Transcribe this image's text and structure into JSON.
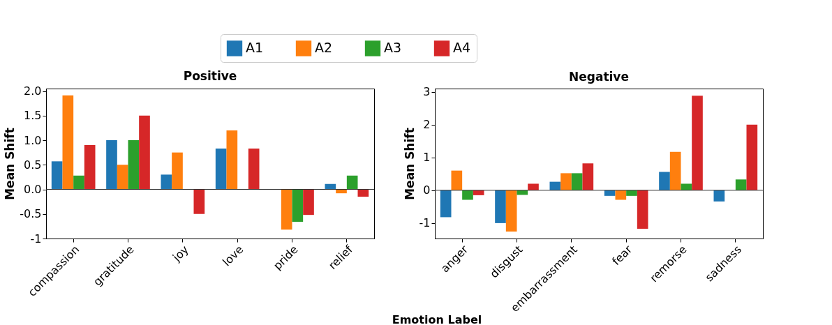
{
  "chart_data": [
    {
      "type": "bar",
      "title": "Positive",
      "xlabel": "Emotion Label",
      "ylabel": "Mean Shift",
      "legend": "top",
      "grid": false,
      "categories": [
        "compassion",
        "gratitude",
        "joy",
        "love",
        "pride",
        "relief"
      ],
      "series": [
        {
          "name": "A1",
          "color": "#1f77b4",
          "values": [
            0.57,
            1.0,
            0.3,
            0.83,
            0,
            0.11
          ]
        },
        {
          "name": "A2",
          "color": "#ff7f0e",
          "values": [
            1.91,
            0.5,
            0.75,
            1.2,
            -0.82,
            -0.08
          ]
        },
        {
          "name": "A3",
          "color": "#2ca02c",
          "values": [
            0.28,
            1.0,
            0,
            0,
            -0.66,
            0.28
          ]
        },
        {
          "name": "A4",
          "color": "#d62728",
          "values": [
            0.9,
            1.5,
            -0.5,
            0.83,
            -0.52,
            -0.15
          ]
        }
      ],
      "ylim": [
        -1,
        2.05
      ],
      "yticks": [
        -1,
        {
          "value": -0.5,
          "label": "-0.5"
        },
        {
          "value": 0,
          "label": "0.0"
        },
        {
          "value": 0.5,
          "label": "0.5"
        },
        {
          "value": 1,
          "label": "1.0"
        },
        {
          "value": 1.5,
          "label": "1.5"
        },
        {
          "value": 2,
          "label": "2.0"
        }
      ],
      "ref_lines": [
        {
          "axis": "y",
          "value": 0,
          "color": "#333333"
        }
      ]
    },
    {
      "type": "bar",
      "title": "Negative",
      "ylabel": "Mean Shift",
      "grid": false,
      "categories": [
        "anger",
        "disgust",
        "embarrassment",
        "fear",
        "remorse",
        "sadness"
      ],
      "series": [
        {
          "name": "A1",
          "color": "#1f77b4",
          "values": [
            -0.82,
            -1.0,
            0.26,
            -0.17,
            0.56,
            -0.34
          ]
        },
        {
          "name": "A2",
          "color": "#ff7f0e",
          "values": [
            0.6,
            -1.26,
            0.52,
            -0.29,
            1.17,
            0
          ]
        },
        {
          "name": "A3",
          "color": "#2ca02c",
          "values": [
            -0.29,
            -0.14,
            0.52,
            -0.17,
            0.2,
            0.33
          ]
        },
        {
          "name": "A4",
          "color": "#d62728",
          "values": [
            -0.15,
            0.2,
            0.82,
            -1.17,
            2.88,
            2.0
          ]
        }
      ],
      "ylim": [
        -1.47,
        3.1
      ],
      "yticks": [
        -1,
        0,
        1,
        2,
        3
      ],
      "ref_lines": [
        {
          "axis": "y",
          "value": 0,
          "color": "#333333"
        }
      ]
    }
  ]
}
